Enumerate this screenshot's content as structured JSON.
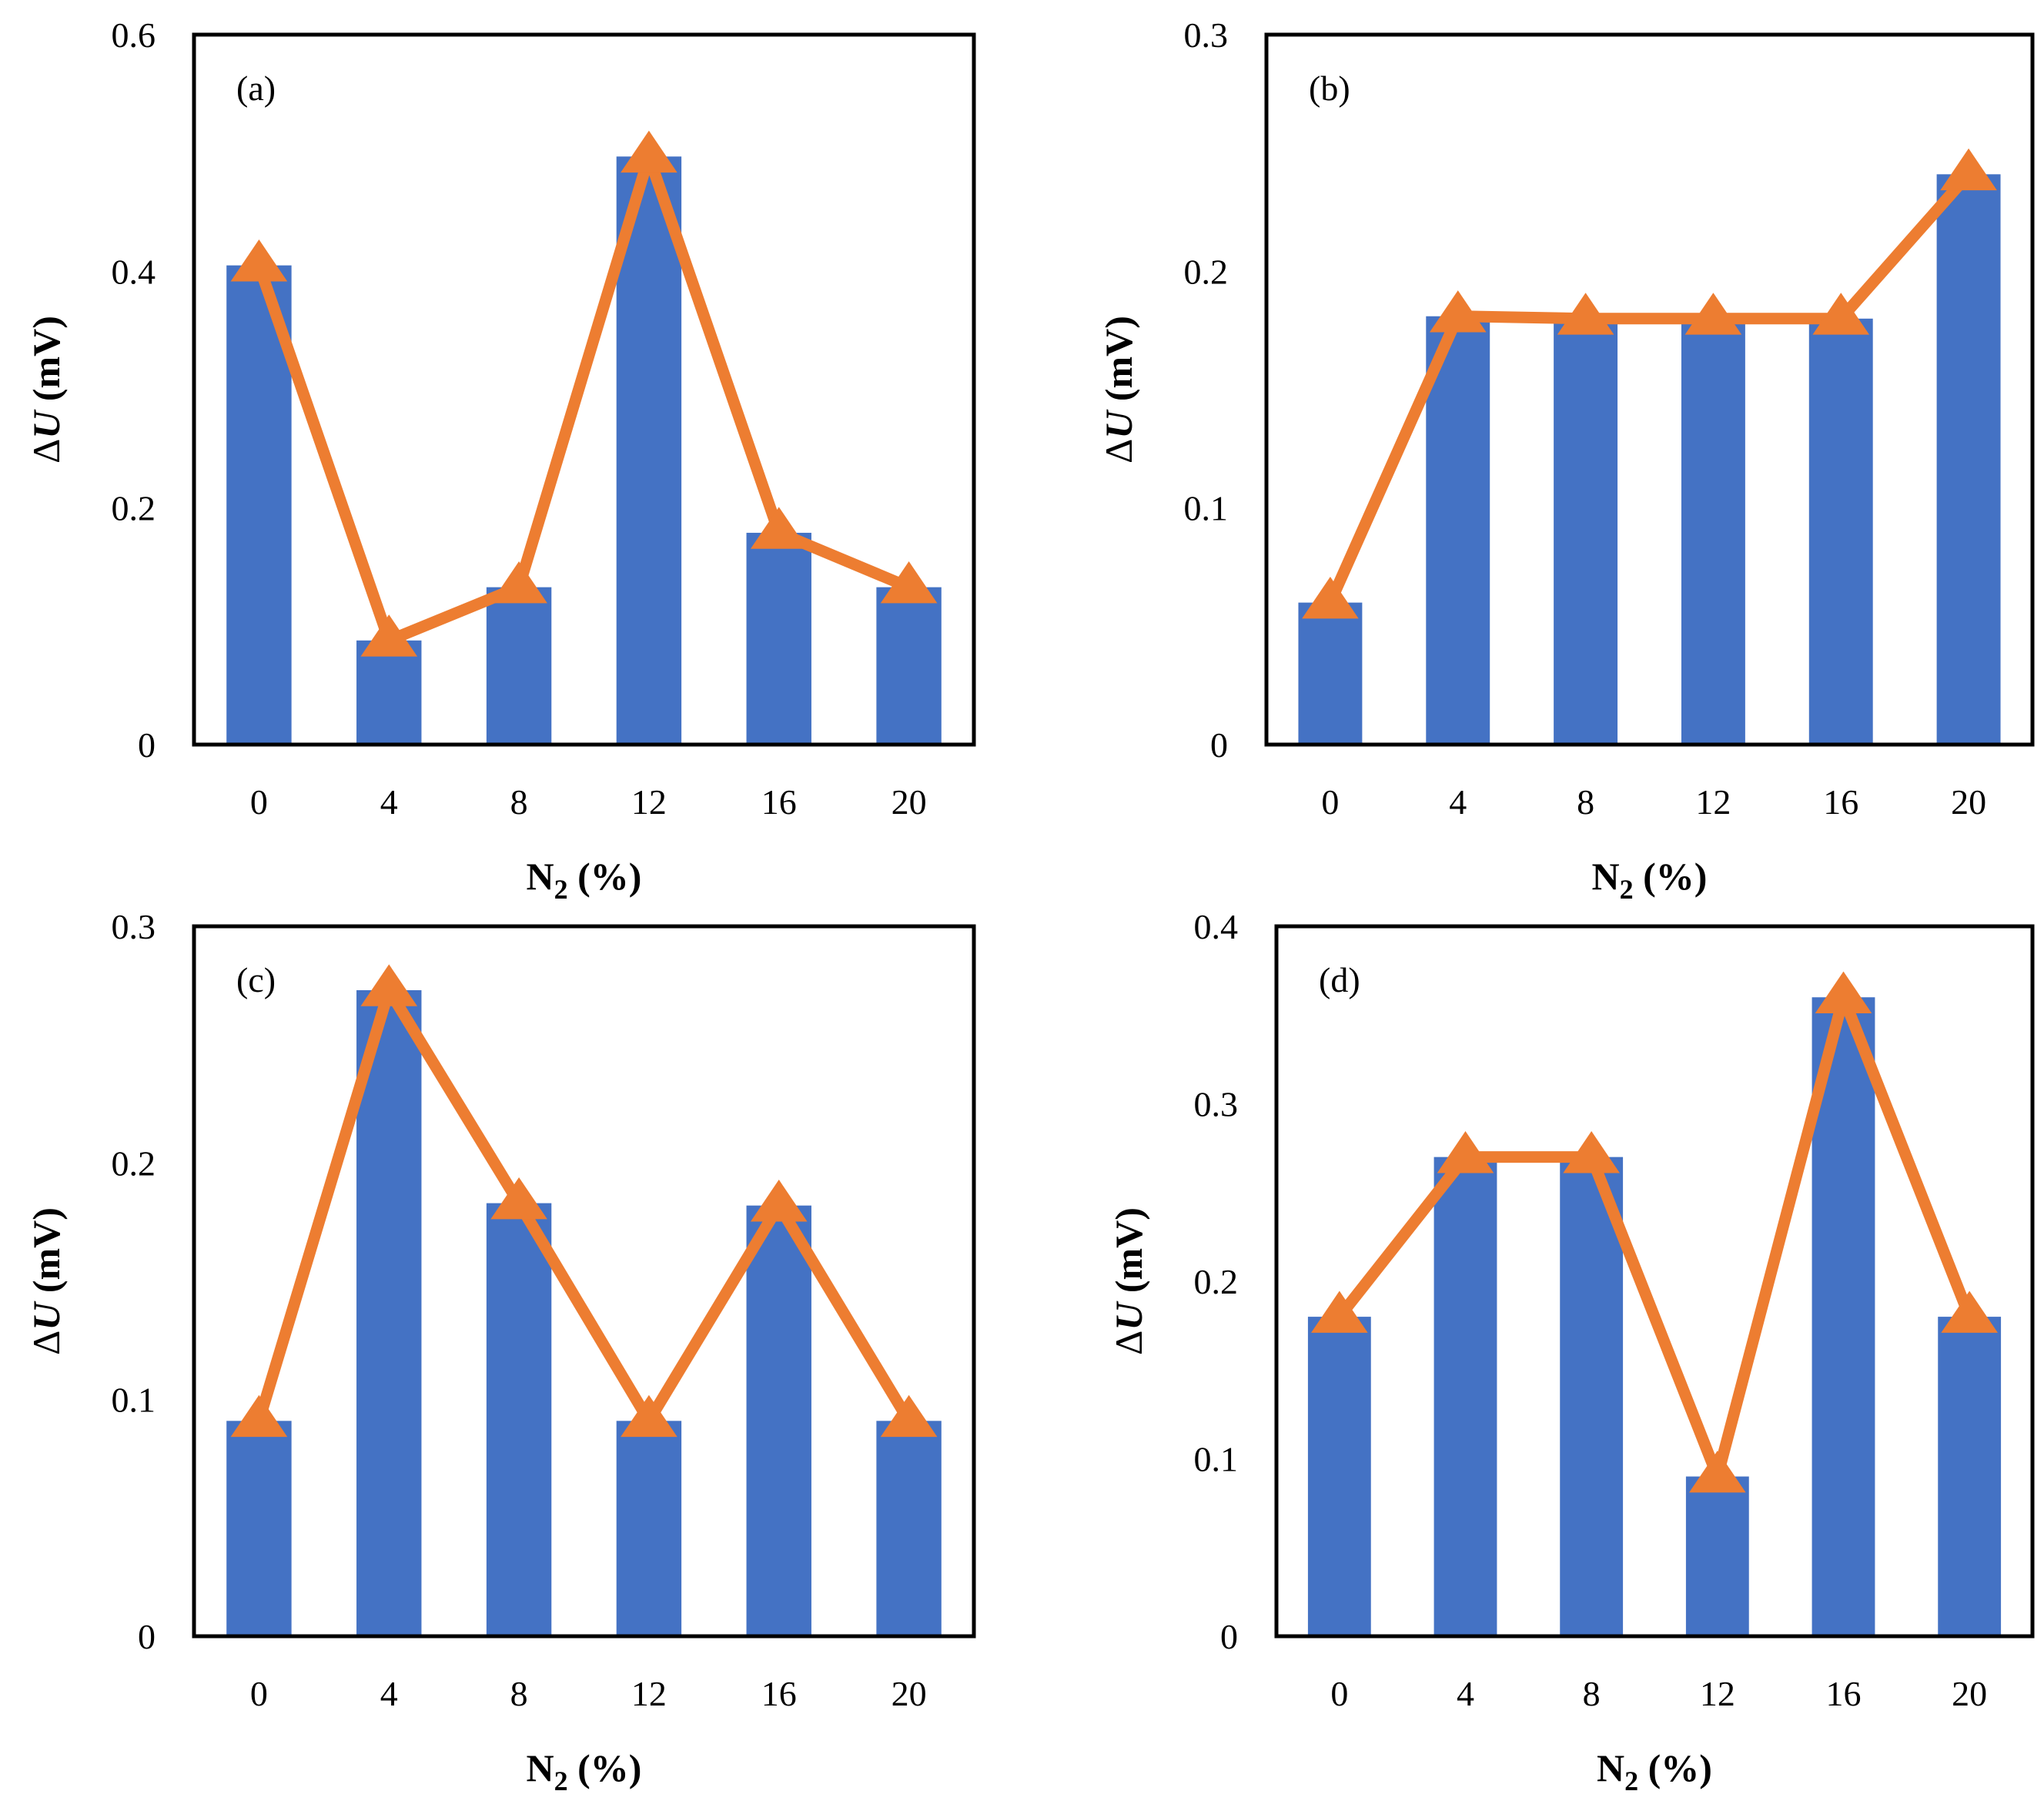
{
  "colors": {
    "bar": "#4472C4",
    "line": "#ED7D31",
    "axis": "#000000",
    "background": "#FFFFFF"
  },
  "chart_data": [
    {
      "type": "bar",
      "overlay": "line-with-triangle-markers",
      "panel_label": "(a)",
      "categories": [
        "0",
        "4",
        "8",
        "12",
        "16",
        "20"
      ],
      "values": [
        0.405,
        0.088,
        0.133,
        0.497,
        0.179,
        0.133
      ],
      "line_values": [
        0.405,
        0.088,
        0.133,
        0.497,
        0.179,
        0.133
      ],
      "ylim": [
        0,
        0.6
      ],
      "yticks": [
        "0",
        "0.2",
        "0.4",
        "0.6"
      ],
      "xlabel_main": "N",
      "xlabel_sub": "2",
      "xlabel_tail": " (%)",
      "ylabel_delta": "Δ",
      "ylabel_var": "U",
      "ylabel_tail": " (mV)"
    },
    {
      "type": "bar",
      "overlay": "line-with-triangle-markers",
      "panel_label": "(b)",
      "categories": [
        "0",
        "4",
        "8",
        "12",
        "16",
        "20"
      ],
      "values": [
        0.06,
        0.181,
        0.18,
        0.18,
        0.18,
        0.241
      ],
      "line_values": [
        0.06,
        0.181,
        0.18,
        0.18,
        0.18,
        0.241
      ],
      "ylim": [
        0,
        0.3
      ],
      "yticks": [
        "0",
        "0.1",
        "0.2",
        "0.3"
      ],
      "xlabel_main": "N",
      "xlabel_sub": "2",
      "xlabel_tail": " (%)",
      "ylabel_delta": "Δ",
      "ylabel_var": "U",
      "ylabel_tail": " (mV)"
    },
    {
      "type": "bar",
      "overlay": "line-with-triangle-markers",
      "panel_label": "(c)",
      "categories": [
        "0",
        "4",
        "8",
        "12",
        "16",
        "20"
      ],
      "values": [
        0.091,
        0.273,
        0.183,
        0.091,
        0.182,
        0.091
      ],
      "line_values": [
        0.091,
        0.273,
        0.183,
        0.091,
        0.182,
        0.091
      ],
      "ylim": [
        0,
        0.3
      ],
      "yticks": [
        "0",
        "0.1",
        "0.2",
        "0.3"
      ],
      "xlabel_main": "N",
      "xlabel_sub": "2",
      "xlabel_tail": " (%)",
      "ylabel_delta": "Δ",
      "ylabel_var": "U",
      "ylabel_tail": " (mV)"
    },
    {
      "type": "bar",
      "overlay": "line-with-triangle-markers",
      "panel_label": "(d)",
      "categories": [
        "0",
        "4",
        "8",
        "12",
        "16",
        "20"
      ],
      "values": [
        0.18,
        0.27,
        0.27,
        0.09,
        0.36,
        0.18
      ],
      "line_values": [
        0.18,
        0.27,
        0.27,
        0.09,
        0.36,
        0.18
      ],
      "ylim": [
        0,
        0.4
      ],
      "yticks": [
        "0",
        "0.1",
        "0.2",
        "0.3",
        "0.4"
      ],
      "xlabel_main": "N",
      "xlabel_sub": "2",
      "xlabel_tail": " (%)",
      "ylabel_delta": "Δ",
      "ylabel_var": "U",
      "ylabel_tail": " (mV)"
    }
  ]
}
